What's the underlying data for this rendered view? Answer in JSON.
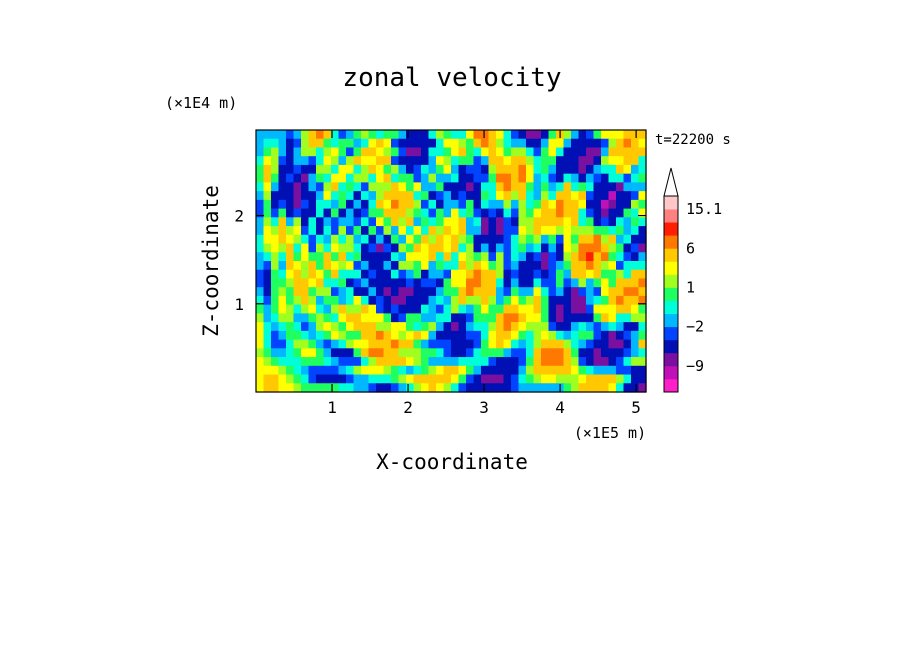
{
  "chart_data": {
    "type": "heatmap",
    "title": "zonal velocity",
    "xlabel": "X-coordinate",
    "ylabel": "Z-coordinate",
    "x_unit": "(×1E5 m)",
    "y_unit": "(×1E4 m)",
    "time_label": "t=22200 s",
    "xlim": [
      0,
      5.13
    ],
    "ylim": [
      0,
      2.97
    ],
    "x_ticks": [
      1,
      2,
      3,
      4,
      5
    ],
    "y_ticks": [
      1,
      2
    ],
    "colorbar": {
      "levels": [
        -15,
        -12,
        -9,
        -6,
        -3,
        -2,
        -1,
        0,
        1,
        2,
        3,
        6,
        9,
        12,
        15.1
      ],
      "labels": [
        {
          "value": 15.1,
          "text": "15.1"
        },
        {
          "value": 6,
          "text": "6"
        },
        {
          "value": 1,
          "text": "1"
        },
        {
          "value": -2,
          "text": "−2"
        },
        {
          "value": -9,
          "text": "−9"
        }
      ],
      "colors": [
        "#ff1fc8",
        "#c010b8",
        "#7a10a0",
        "#0010b4",
        "#0044ff",
        "#00b8ff",
        "#00ffd8",
        "#20ff60",
        "#a0ff20",
        "#ffff00",
        "#ffc800",
        "#ff7800",
        "#ff1e00",
        "#ff8080",
        "#ffc8c8"
      ],
      "extend_top": true
    },
    "field_description_levels": "zonal velocity field sampled on a coarse grid (values in colorbar units)",
    "grid": {
      "nx": 52,
      "nz": 30,
      "values": []
    }
  }
}
